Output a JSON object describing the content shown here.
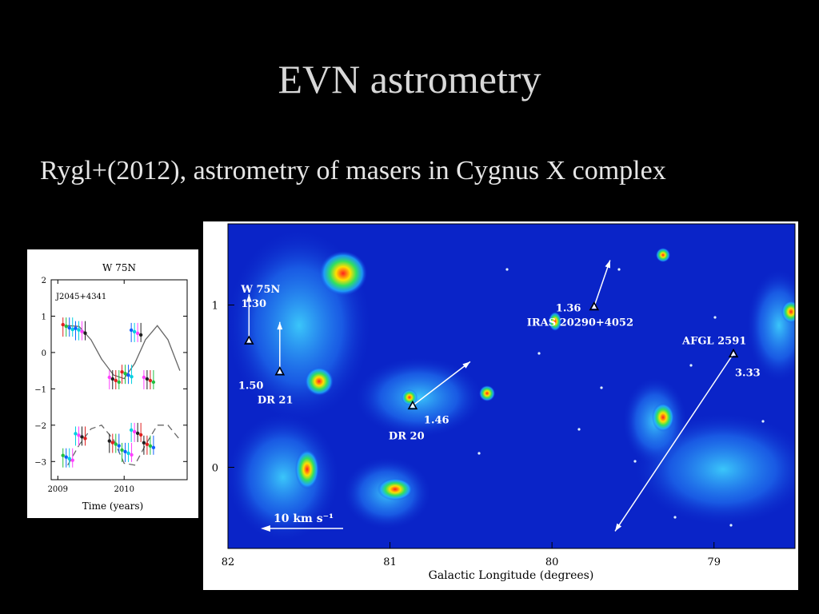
{
  "slide": {
    "title": "EVN astrometry",
    "subtitle": "Rygl+(2012), astrometry of masers in Cygnus X complex"
  },
  "chart_data": [
    {
      "type": "scatter",
      "title": "W 75N",
      "annotation": "J2045+4341",
      "xlabel": "Time (years)",
      "ylabel": "",
      "x_tick_labels": [
        "2009",
        "2010"
      ],
      "y_tick_labels": [
        "2",
        "1",
        "0",
        "−1",
        "−2",
        "−3"
      ],
      "xlim": [
        2008.9,
        2010.95
      ],
      "ylim": [
        -3.5,
        2.0
      ],
      "series": [
        {
          "style": "solid-sine",
          "x": [
            2009.15,
            2009.32,
            2009.5,
            2009.66,
            2009.84,
            2010.0,
            2010.16,
            2010.32,
            2010.5,
            2010.66,
            2010.84
          ],
          "y": [
            0.74,
            0.72,
            0.35,
            -0.18,
            -0.62,
            -0.72,
            -0.3,
            0.35,
            0.74,
            0.35,
            -0.5
          ]
        },
        {
          "style": "dashed-sine",
          "x": [
            2009.15,
            2009.32,
            2009.5,
            2009.66,
            2009.84,
            2010.0,
            2010.16,
            2010.32,
            2010.5,
            2010.66,
            2010.84
          ],
          "y": [
            -3.1,
            -2.55,
            -2.1,
            -2.0,
            -2.4,
            -3.05,
            -3.1,
            -2.55,
            -2.0,
            -2.0,
            -2.4
          ]
        },
        {
          "style": "points",
          "x": [
            2009.15,
            2009.15,
            2009.34,
            2009.34,
            2009.85,
            2009.85,
            2010.04,
            2010.04,
            2010.18,
            2010.18,
            2010.37,
            2010.37
          ],
          "y": [
            0.7,
            -2.9,
            0.6,
            -2.3,
            -0.75,
            -2.5,
            -0.6,
            -2.75,
            0.55,
            -2.2,
            -0.75,
            -2.55
          ]
        }
      ]
    },
    {
      "type": "heatmap",
      "title": "",
      "xlabel": "Galactic Longitude (degrees)",
      "ylabel": "",
      "x_tick_labels": [
        "82",
        "81",
        "80",
        "79"
      ],
      "y_tick_labels": [
        "1",
        "0"
      ],
      "xlim": [
        82.0,
        78.5
      ],
      "ylim": [
        -0.5,
        1.5
      ],
      "sources": [
        {
          "name": "W 75N",
          "value_label": "1.30",
          "l": 81.87,
          "b": 0.78
        },
        {
          "name": "DR 21",
          "value_label": "1.50",
          "l": 81.68,
          "b": 0.59
        },
        {
          "name": "DR 20",
          "value_label": "1.46",
          "l": 80.86,
          "b": 0.38
        },
        {
          "name": "IRAS 20290+4052",
          "value_label": "1.36",
          "l": 79.74,
          "b": 0.99
        },
        {
          "name": "AFGL 2591",
          "value_label": "3.33",
          "l": 78.88,
          "b": 0.7
        }
      ],
      "scale_bar_label": "10 km s⁻¹"
    }
  ]
}
